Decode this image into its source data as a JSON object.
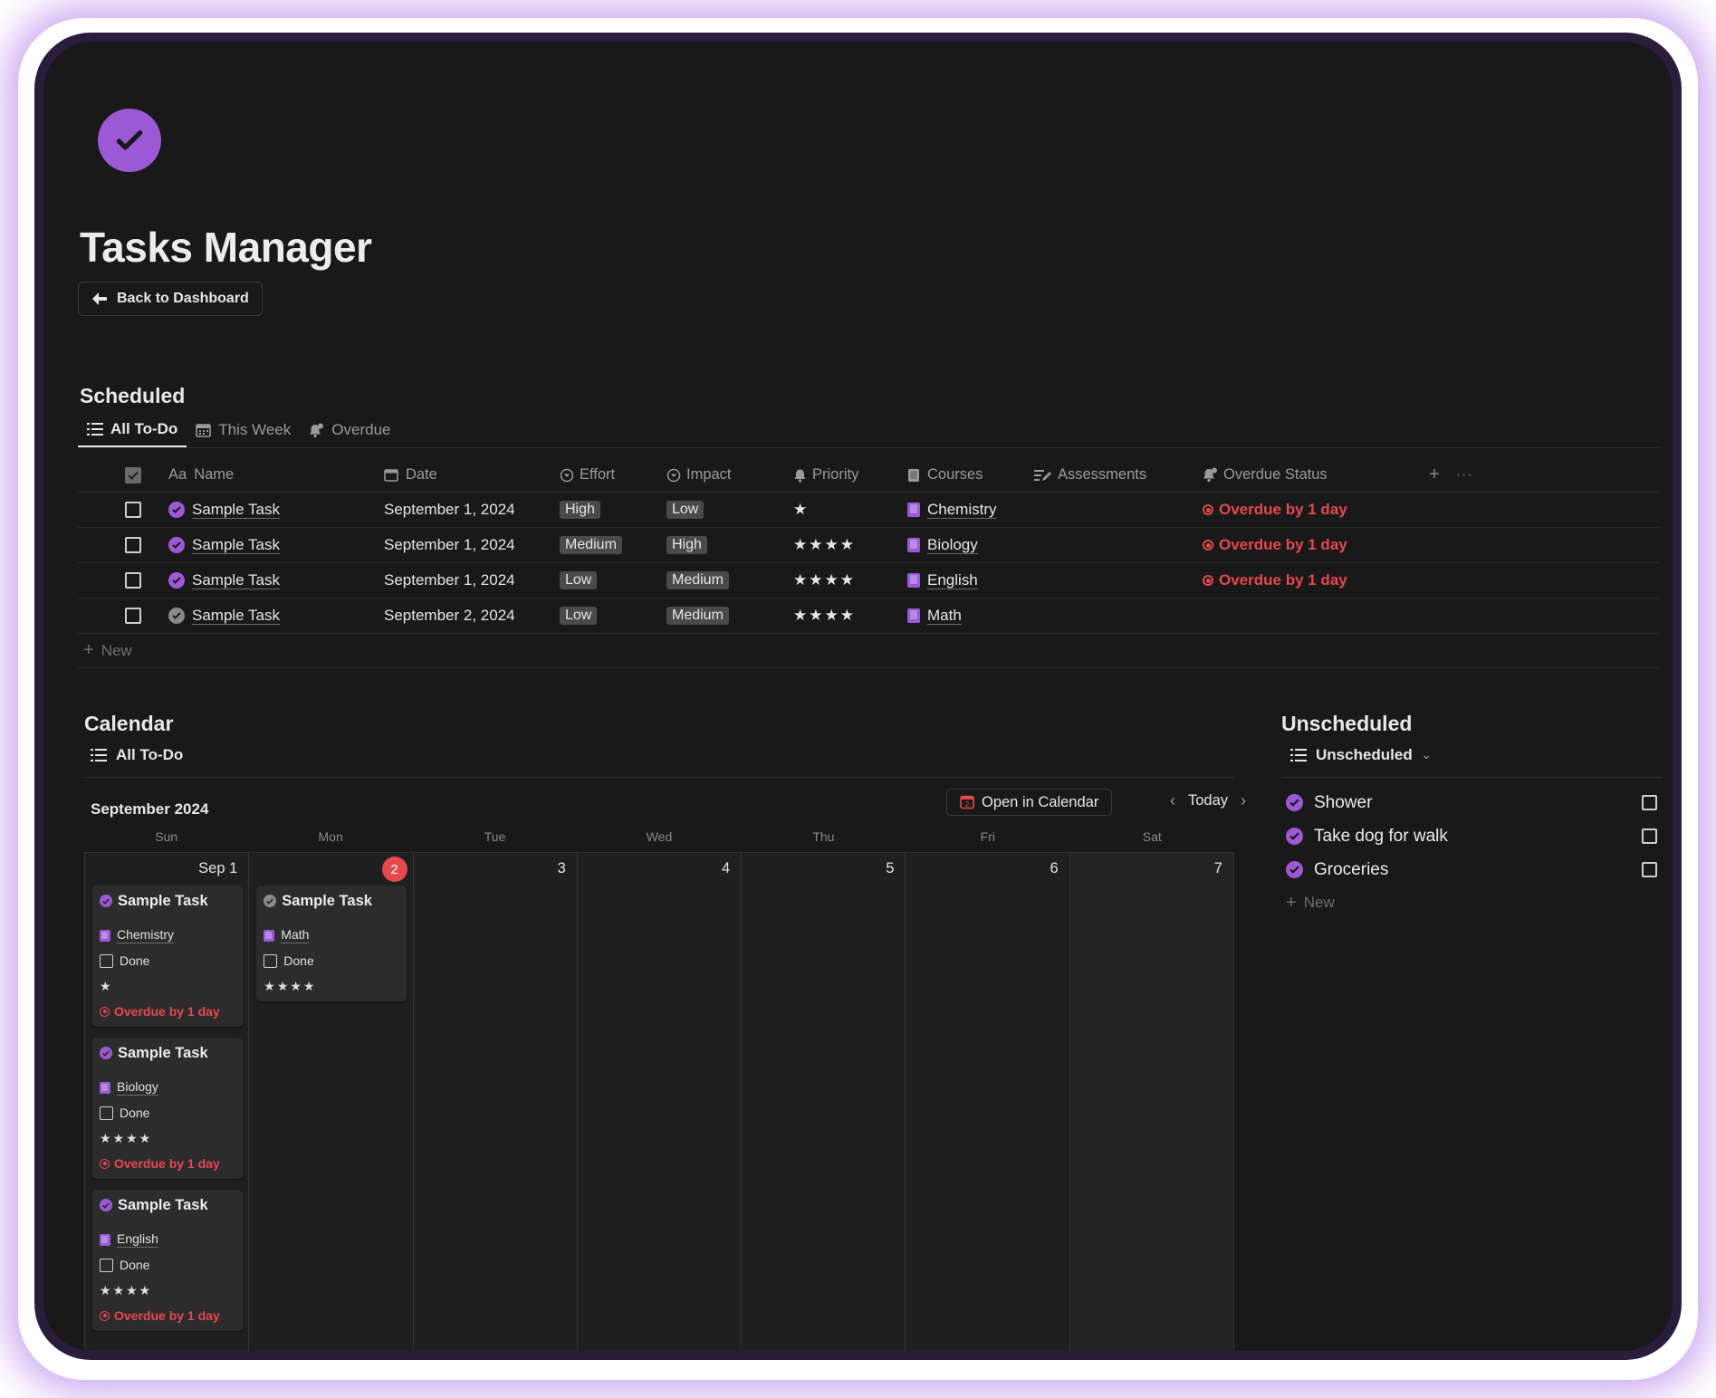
{
  "page": {
    "title": "Tasks Manager",
    "back_button": "Back to Dashboard"
  },
  "colors": {
    "accent": "#9b59d6",
    "overdue": "#e5484d",
    "background": "#191919"
  },
  "scheduled": {
    "heading": "Scheduled",
    "tabs": [
      {
        "label": "All To-Do",
        "icon": "list-icon",
        "active": true
      },
      {
        "label": "This Week",
        "icon": "calendar-icon",
        "active": false
      },
      {
        "label": "Overdue",
        "icon": "bell-icon",
        "active": false
      }
    ],
    "columns": {
      "name": "Name",
      "name_prefix": "Aa",
      "date": "Date",
      "effort": "Effort",
      "impact": "Impact",
      "priority": "Priority",
      "courses": "Courses",
      "assessments": "Assessments",
      "overdue_status": "Overdue Status"
    },
    "rows": [
      {
        "name": "Sample Task",
        "date": "September 1, 2024",
        "effort": "High",
        "impact": "Low",
        "priority": "★",
        "course": "Chemistry",
        "overdue": "Overdue by 1 day"
      },
      {
        "name": "Sample Task",
        "date": "September 1, 2024",
        "effort": "Medium",
        "impact": "High",
        "priority": "★★★★",
        "course": "Biology",
        "overdue": "Overdue by 1 day"
      },
      {
        "name": "Sample Task",
        "date": "September 1, 2024",
        "effort": "Low",
        "impact": "Medium",
        "priority": "★★★★",
        "course": "English",
        "overdue": "Overdue by 1 day"
      },
      {
        "name": "Sample Task",
        "date": "September 2, 2024",
        "effort": "Low",
        "impact": "Medium",
        "priority": "★★★★",
        "course": "Math",
        "overdue": ""
      }
    ],
    "new_label": "New"
  },
  "calendar": {
    "heading": "Calendar",
    "view": "All To-Do",
    "month": "September 2024",
    "open_button": "Open in Calendar",
    "today_button": "Today",
    "weekdays": [
      "Sun",
      "Mon",
      "Tue",
      "Wed",
      "Thu",
      "Fri",
      "Sat"
    ],
    "day_numbers": [
      "Sep 1",
      "2",
      "3",
      "4",
      "5",
      "6",
      "7"
    ],
    "cards": [
      {
        "title": "Sample Task",
        "course": "Chemistry",
        "done": "Done",
        "priority": "★",
        "overdue": "Overdue by 1 day"
      },
      {
        "title": "Sample Task",
        "course": "Biology",
        "done": "Done",
        "priority": "★★★★",
        "overdue": "Overdue by 1 day"
      },
      {
        "title": "Sample Task",
        "course": "English",
        "done": "Done",
        "priority": "★★★★",
        "overdue": "Overdue by 1 day"
      },
      {
        "title": "Sample Task",
        "course": "Math",
        "done": "Done",
        "priority": "★★★★"
      }
    ]
  },
  "unscheduled": {
    "heading": "Unscheduled",
    "view": "Unscheduled",
    "items": [
      "Shower",
      "Take dog for walk",
      "Groceries"
    ],
    "new_label": "New"
  }
}
